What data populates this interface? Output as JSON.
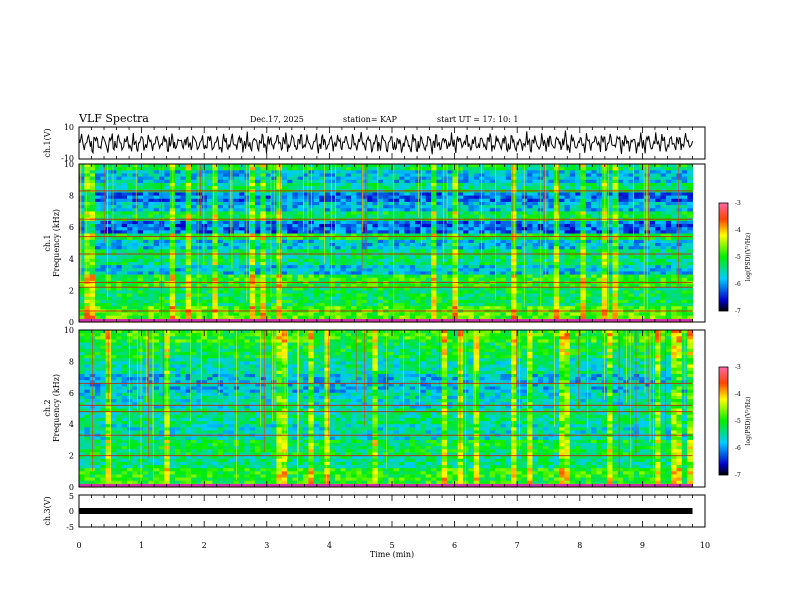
{
  "header": {
    "title": "VLF Spectra",
    "date": "Dec.17, 2025",
    "station": "station= KAP",
    "start": "start  UT =   17: 10: 1"
  },
  "colors": {
    "background": "#ffffff",
    "axes": "#000000",
    "trace": "#000000",
    "spectrogram_base": "#22ee22"
  },
  "chart_data": [
    {
      "id": "ch1-waveform",
      "type": "line",
      "ylabel": "ch.1(V)",
      "ylim": [
        -10,
        10
      ],
      "yticks": [
        "10",
        "-10"
      ],
      "x_range_min": [
        0,
        9.8
      ],
      "description_of_series": "oscillating voltage trace between about -8 and 8 V"
    },
    {
      "id": "ch1-spectrogram",
      "type": "heatmap",
      "ylabel1": "ch.1",
      "ylabel2": "Frequency (kHz)",
      "ylim": [
        0,
        10
      ],
      "yticks": [
        "0",
        "2",
        "4",
        "6",
        "8",
        "10"
      ],
      "colorbar": {
        "label": "log(PSD)(V²/Hz)",
        "range": [
          -7,
          -3
        ],
        "ticks": [
          "-3",
          "-4",
          "-5",
          "-6",
          "-7"
        ]
      }
    },
    {
      "id": "ch2-spectrogram",
      "type": "heatmap",
      "ylabel1": "ch.2",
      "ylabel2": "Frequency (kHz)",
      "ylim": [
        0,
        10
      ],
      "yticks": [
        "0",
        "2",
        "4",
        "6",
        "8",
        "10"
      ],
      "colorbar": {
        "label": "log(PSD)(V²/Hz)",
        "range": [
          -7,
          -3
        ],
        "ticks": [
          "-3",
          "-4",
          "-5",
          "-6",
          "-7"
        ]
      }
    },
    {
      "id": "ch3-waveform",
      "type": "line",
      "ylabel": "ch.3(V)",
      "ylim": [
        -5,
        5
      ],
      "yticks": [
        "5",
        "0",
        "-5"
      ],
      "constant_value": 0
    }
  ],
  "xaxis": {
    "label": "Time (min)",
    "xlim": [
      0,
      10
    ],
    "ticks": [
      "0",
      "1",
      "2",
      "3",
      "4",
      "5",
      "6",
      "7",
      "8",
      "9",
      "10"
    ]
  }
}
